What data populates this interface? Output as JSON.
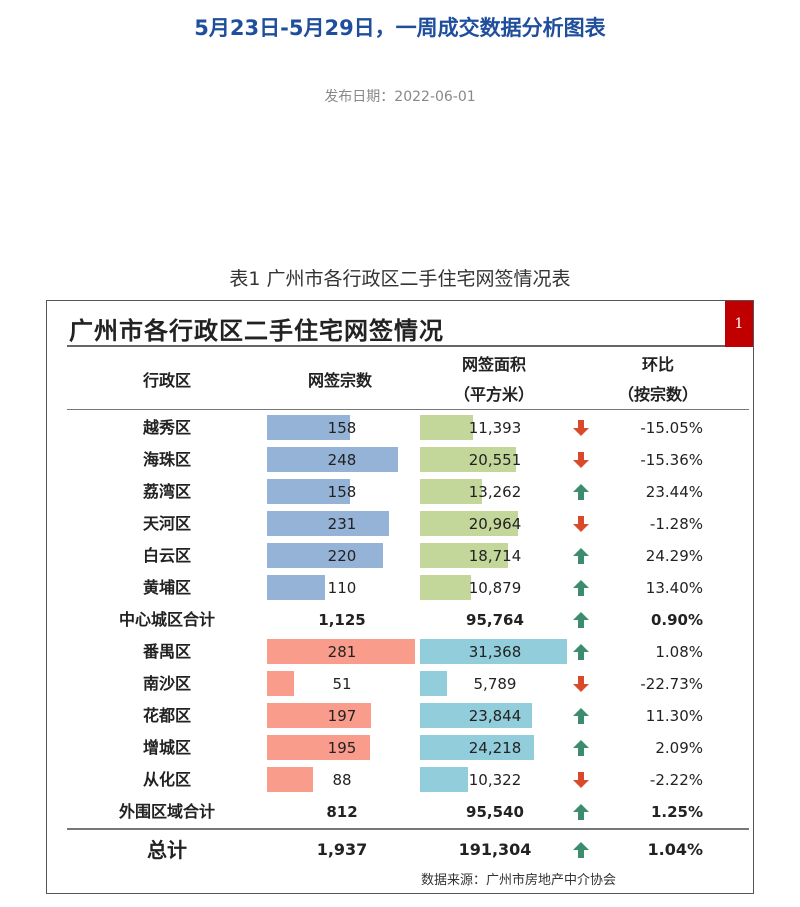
{
  "article": {
    "title": "5月23日-5月29日，一周成交数据分析图表",
    "publish_date": "发布日期：2022-06-01"
  },
  "table_caption": "表1 广州市各行政区二手住宅网签情况表",
  "report": {
    "title": "广州市各行政区二手住宅网签情况",
    "page_number": "1",
    "source": "数据来源：广州市房地产中介协会"
  },
  "chart_data": {
    "type": "table",
    "title": "广州市各行政区二手住宅网签情况",
    "columns": {
      "district": "行政区",
      "count": "网签宗数",
      "area_line1": "网签面积",
      "area_line2": "（平方米）",
      "change_line1": "环比",
      "change_line2": "（按宗数）"
    },
    "rows": [
      {
        "district": "越秀区",
        "count": 158,
        "count_label": "158",
        "area": 11393,
        "area_label": "11,393",
        "change": -15.05,
        "change_label": "-15.05%",
        "trend": "down",
        "group": "central"
      },
      {
        "district": "海珠区",
        "count": 248,
        "count_label": "248",
        "area": 20551,
        "area_label": "20,551",
        "change": -15.36,
        "change_label": "-15.36%",
        "trend": "down",
        "group": "central"
      },
      {
        "district": "荔湾区",
        "count": 158,
        "count_label": "158",
        "area": 13262,
        "area_label": "13,262",
        "change": 23.44,
        "change_label": "23.44%",
        "trend": "up",
        "group": "central"
      },
      {
        "district": "天河区",
        "count": 231,
        "count_label": "231",
        "area": 20964,
        "area_label": "20,964",
        "change": -1.28,
        "change_label": "-1.28%",
        "trend": "down",
        "group": "central"
      },
      {
        "district": "白云区",
        "count": 220,
        "count_label": "220",
        "area": 18714,
        "area_label": "18,714",
        "change": 24.29,
        "change_label": "24.29%",
        "trend": "up",
        "group": "central"
      },
      {
        "district": "黄埔区",
        "count": 110,
        "count_label": "110",
        "area": 10879,
        "area_label": "10,879",
        "change": 13.4,
        "change_label": "13.40%",
        "trend": "up",
        "group": "central"
      },
      {
        "district": "中心城区合计",
        "count": 1125,
        "count_label": "1,125",
        "area": 95764,
        "area_label": "95,764",
        "change": 0.9,
        "change_label": "0.90%",
        "trend": "up",
        "group": "subtotal"
      },
      {
        "district": "番禺区",
        "count": 281,
        "count_label": "281",
        "area": 31368,
        "area_label": "31,368",
        "change": 1.08,
        "change_label": "1.08%",
        "trend": "up",
        "group": "outer"
      },
      {
        "district": "南沙区",
        "count": 51,
        "count_label": "51",
        "area": 5789,
        "area_label": "5,789",
        "change": -22.73,
        "change_label": "-22.73%",
        "trend": "down",
        "group": "outer"
      },
      {
        "district": "花都区",
        "count": 197,
        "count_label": "197",
        "area": 23844,
        "area_label": "23,844",
        "change": 11.3,
        "change_label": "11.30%",
        "trend": "up",
        "group": "outer"
      },
      {
        "district": "增城区",
        "count": 195,
        "count_label": "195",
        "area": 24218,
        "area_label": "24,218",
        "change": 2.09,
        "change_label": "2.09%",
        "trend": "up",
        "group": "outer"
      },
      {
        "district": "从化区",
        "count": 88,
        "count_label": "88",
        "area": 10322,
        "area_label": "10,322",
        "change": -2.22,
        "change_label": "-2.22%",
        "trend": "down",
        "group": "outer"
      },
      {
        "district": "外围区域合计",
        "count": 812,
        "count_label": "812",
        "area": 95540,
        "area_label": "95,540",
        "change": 1.25,
        "change_label": "1.25%",
        "trend": "up",
        "group": "subtotal"
      },
      {
        "district": "总计",
        "count": 1937,
        "count_label": "1,937",
        "area": 191304,
        "area_label": "191,304",
        "change": 1.04,
        "change_label": "1.04%",
        "trend": "up",
        "group": "grand"
      }
    ],
    "bar_scale": {
      "count_max": 285,
      "area_max": 32000
    },
    "colors": {
      "central_count": "#95b3d7",
      "central_area": "#c4d79b",
      "outer_count": "#fa9c8c",
      "outer_area": "#92cddc",
      "arrow_up": "#3c8c6e",
      "arrow_down": "#d94a2a"
    },
    "icons": {
      "up": "arrow-up-icon",
      "down": "arrow-down-icon"
    }
  }
}
